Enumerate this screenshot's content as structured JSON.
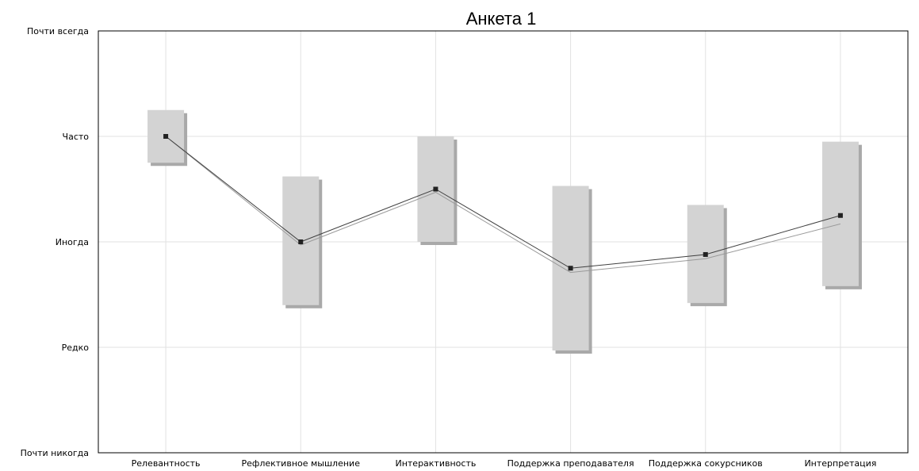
{
  "chart_data": {
    "type": "box",
    "title": "Анкета 1",
    "xlabel": "",
    "ylabel": "",
    "categories": [
      "Релевантность",
      "Рефлективное мышление",
      "Интерактивность",
      "Поддержка преподавателя",
      "Поддержка сокурсников",
      "Интерпретация"
    ],
    "y_tick_labels": [
      "Почти никогда",
      "Редко",
      "Иногда",
      "Часто",
      "Почти всегда"
    ],
    "ylim": [
      1,
      5
    ],
    "grid": true,
    "mean": [
      4.0,
      3.0,
      3.5,
      2.75,
      2.88,
      3.25
    ],
    "box_low": [
      3.75,
      2.4,
      3.0,
      1.97,
      2.42,
      2.58
    ],
    "box_high": [
      4.25,
      3.62,
      4.0,
      3.53,
      3.35,
      3.95
    ],
    "second_line": [
      4.0,
      2.97,
      3.47,
      2.71,
      2.84,
      3.17
    ]
  }
}
